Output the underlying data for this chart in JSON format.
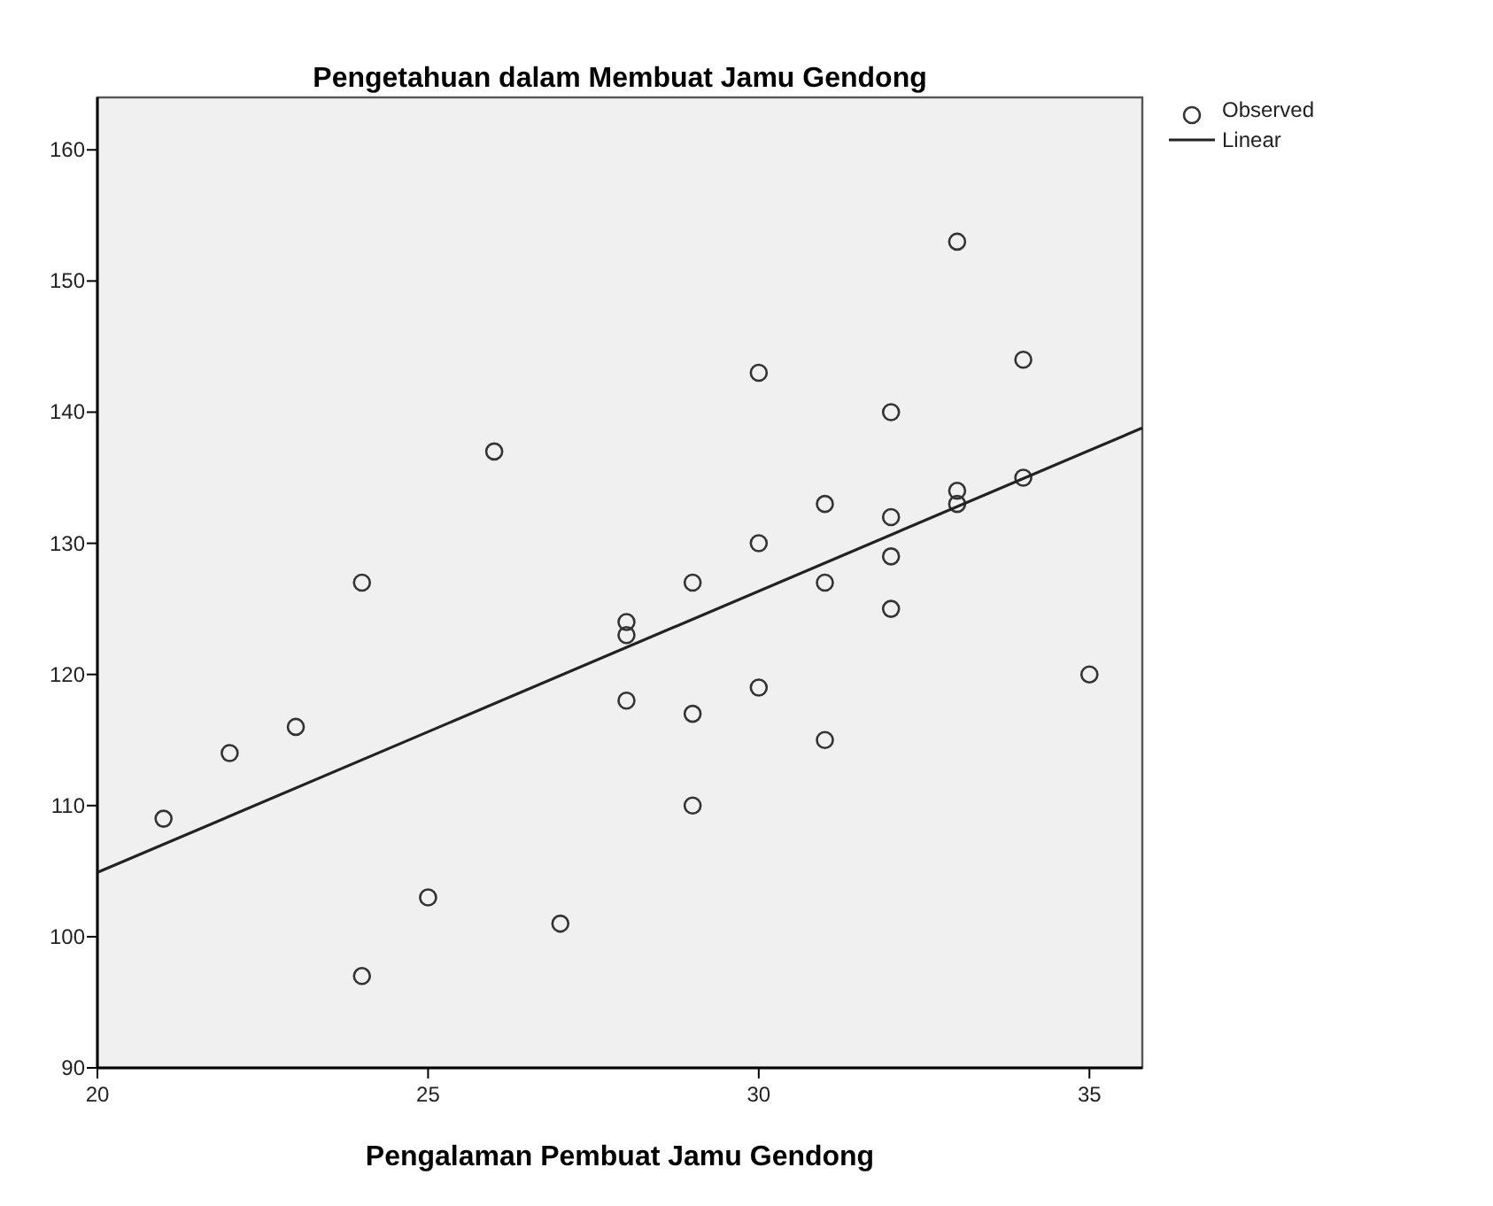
{
  "chart_data": {
    "type": "scatter",
    "title": "Pengetahuan dalam Membuat Jamu Gendong",
    "xlabel": "Pengalaman Pembuat Jamu Gendong",
    "xlim": [
      20,
      35.8
    ],
    "xticks": [
      20,
      25,
      30,
      35
    ],
    "ylim": [
      90,
      164
    ],
    "yticks": [
      90,
      100,
      110,
      120,
      130,
      140,
      150,
      160
    ],
    "grid": false,
    "legend": "top right",
    "marker": "circle",
    "series": [
      {
        "name": "Observed",
        "color": "#333333",
        "x": [
          21,
          22,
          23,
          24,
          24,
          25,
          26,
          27,
          28,
          28,
          28,
          29,
          29,
          29,
          30,
          30,
          30,
          31,
          31,
          31,
          32,
          32,
          32,
          32,
          33,
          33,
          33,
          34,
          34,
          35
        ],
        "values": [
          109,
          114,
          116,
          127,
          97,
          103,
          137,
          101,
          124,
          123,
          118,
          127,
          117,
          110,
          143,
          130,
          119,
          133,
          127,
          115,
          140,
          132,
          129,
          125,
          153,
          134,
          133,
          144,
          135,
          120
        ]
      },
      {
        "name": "Linear",
        "type": "line",
        "color": "#222222",
        "marker": "none",
        "line_style": "solid",
        "x": [
          20,
          35.8
        ],
        "values": [
          104.9,
          138.8
        ]
      }
    ]
  }
}
